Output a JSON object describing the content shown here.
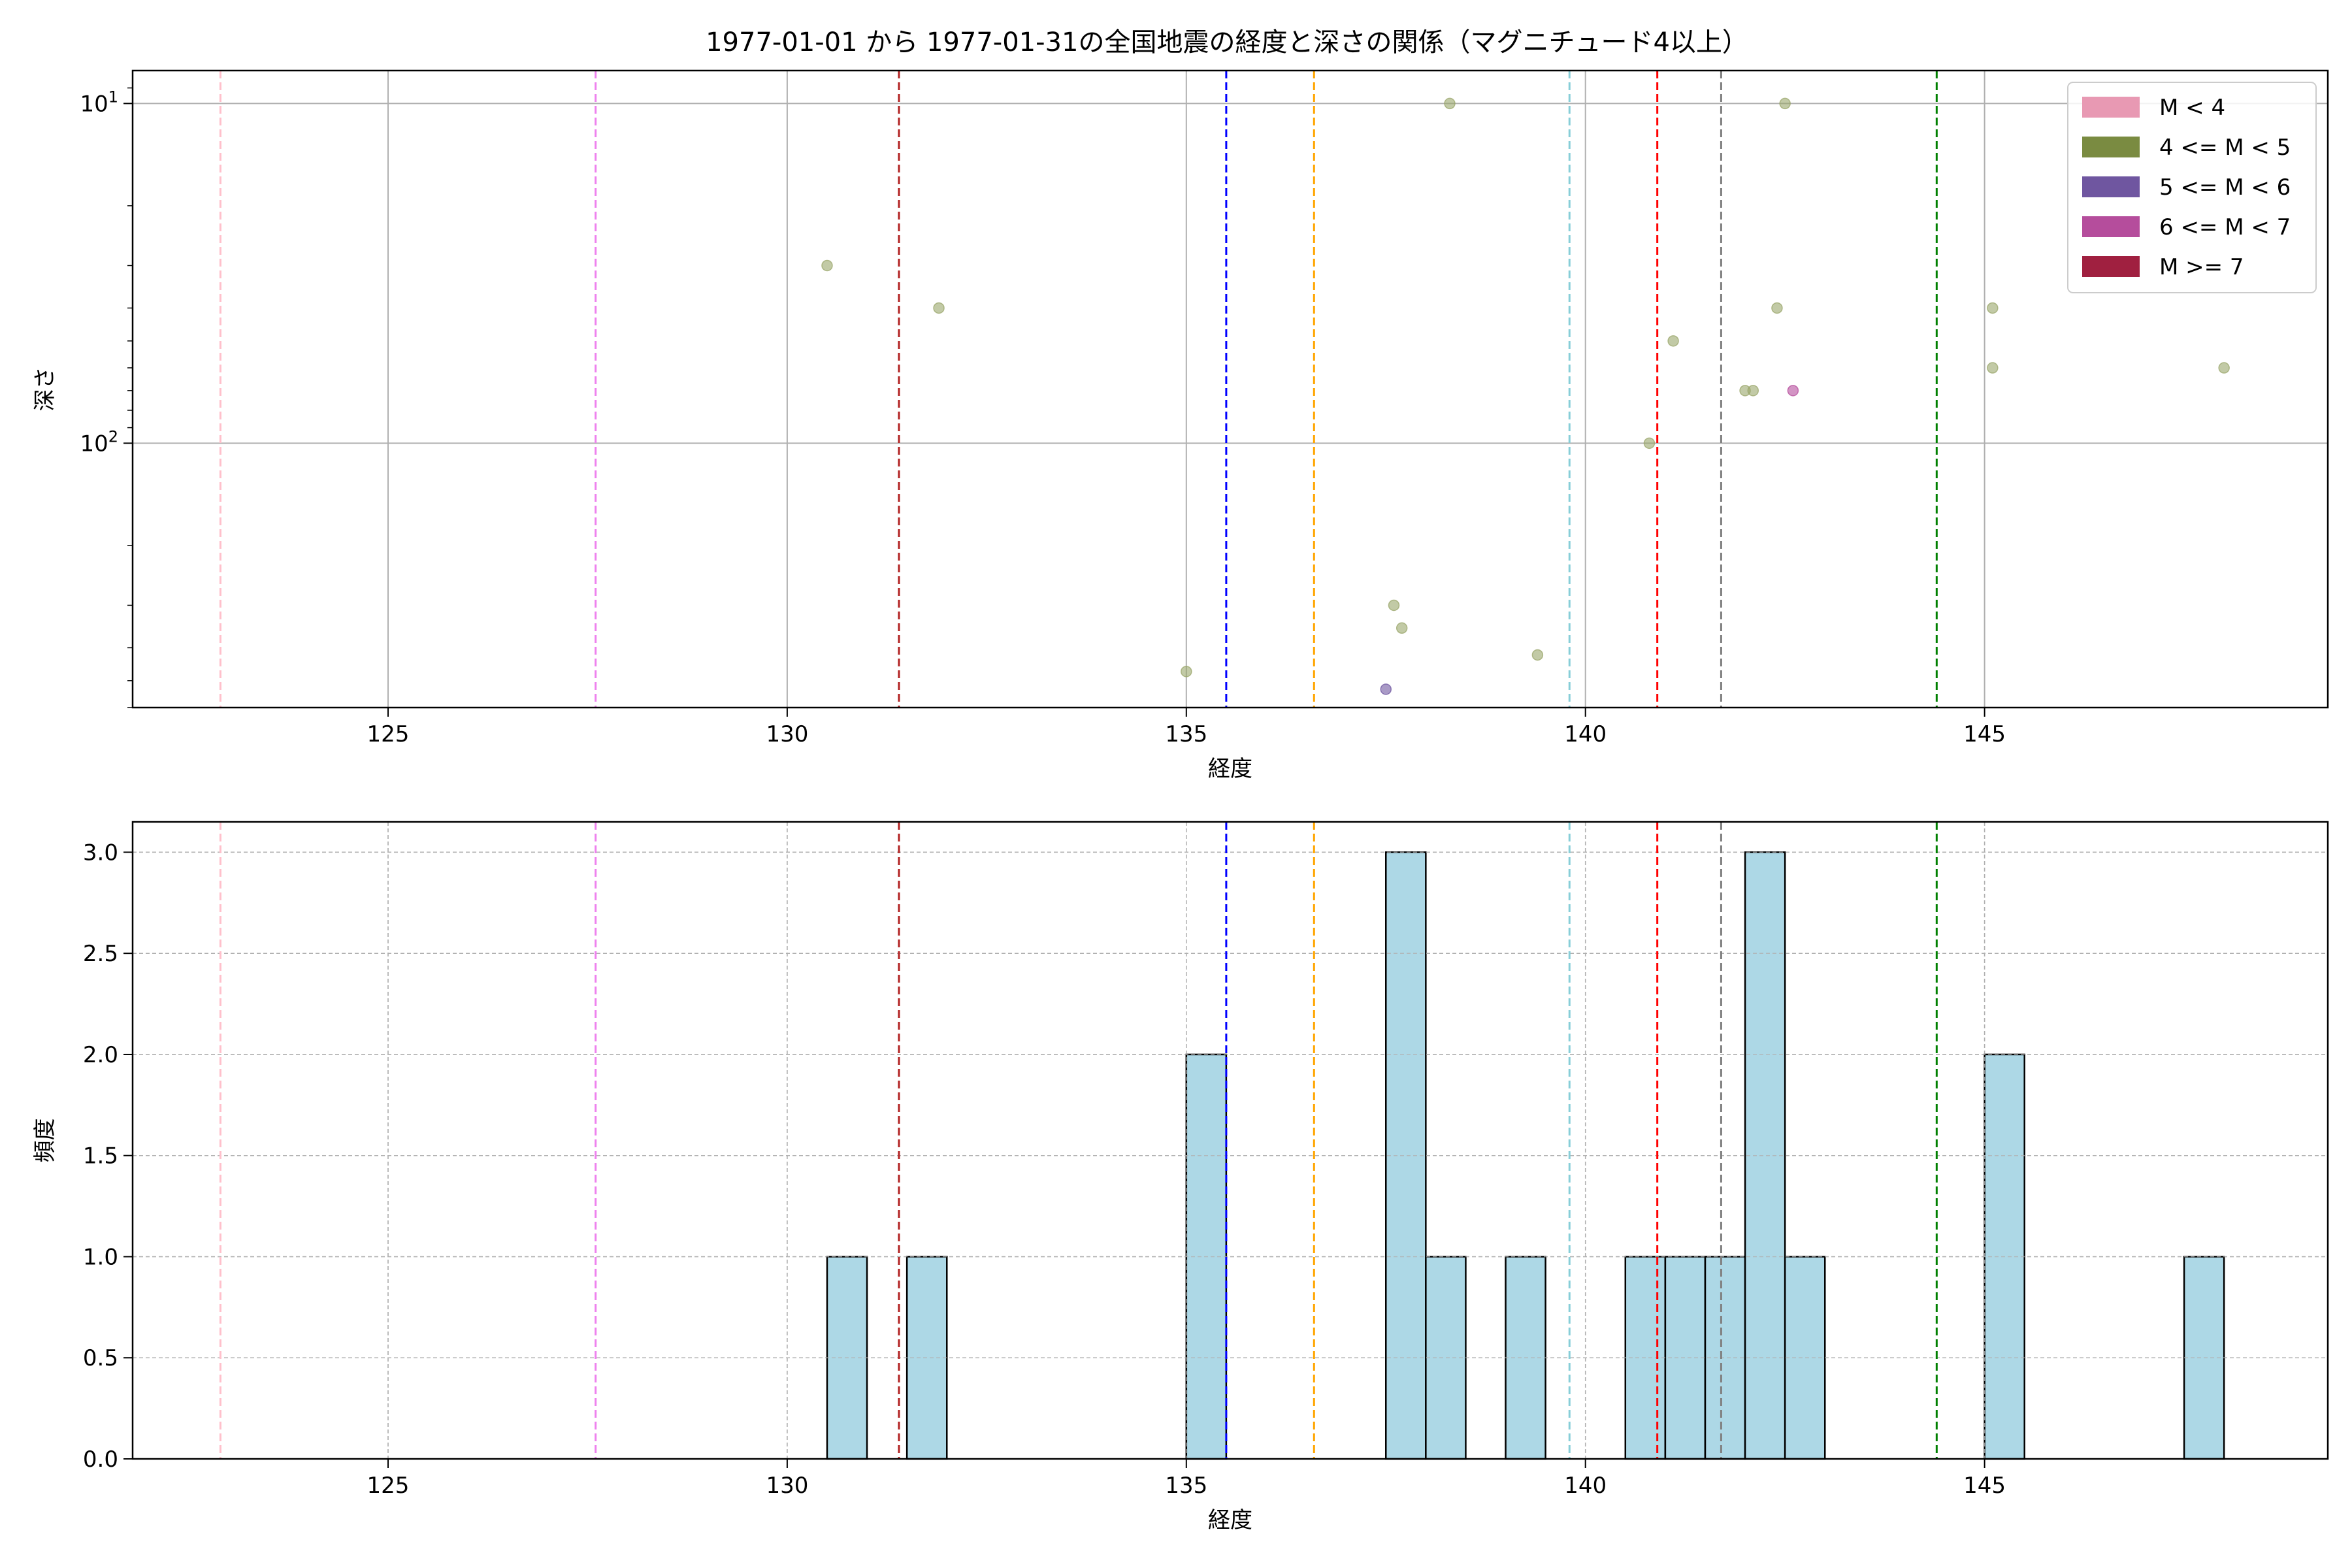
{
  "figure_title": "1977-01-01 から 1977-01-31の全国地震の経度と深さの関係（マグニチュード4以上）",
  "reference_lines": [
    {
      "x": 122.9,
      "color": "#ffc0cb"
    },
    {
      "x": 127.6,
      "color": "#ee82ee"
    },
    {
      "x": 131.4,
      "color": "#b22222"
    },
    {
      "x": 135.5,
      "color": "#0000ff"
    },
    {
      "x": 136.6,
      "color": "#ffa500"
    },
    {
      "x": 139.8,
      "color": "#87ced8"
    },
    {
      "x": 140.9,
      "color": "#ff0000"
    },
    {
      "x": 141.7,
      "color": "#808080"
    },
    {
      "x": 144.4,
      "color": "#008000"
    }
  ],
  "chart_data": [
    {
      "type": "scatter",
      "title": "",
      "xlabel": "経度",
      "ylabel": "深さ",
      "xlim": [
        121.8,
        149.3
      ],
      "ylim": [
        600,
        8
      ],
      "yscale": "log",
      "inverted_y": true,
      "grid": true,
      "xticks": [
        125,
        130,
        135,
        140,
        145
      ],
      "yticks": [
        {
          "value": 10,
          "base": "10",
          "exp": "1"
        },
        {
          "value": 100,
          "base": "10",
          "exp": "2"
        }
      ],
      "legend": {
        "position": "top-right",
        "entries": [
          {
            "label": "M < 4",
            "color": "#e899b3"
          },
          {
            "label": "4 <= M < 5",
            "color": "#7a8b41"
          },
          {
            "label": "5 <= M < 6",
            "color": "#6f56a0"
          },
          {
            "label": "6 <= M < 7",
            "color": "#b54d9c"
          },
          {
            "label": "M >= 7",
            "color": "#a02040"
          }
        ]
      },
      "series": [
        {
          "name": "4 <= M < 5",
          "color": "#9aa66a",
          "points": [
            {
              "x": 130.5,
              "y": 30
            },
            {
              "x": 131.9,
              "y": 40
            },
            {
              "x": 135.0,
              "y": 470
            },
            {
              "x": 137.6,
              "y": 300
            },
            {
              "x": 137.7,
              "y": 350
            },
            {
              "x": 138.3,
              "y": 10
            },
            {
              "x": 139.4,
              "y": 420
            },
            {
              "x": 140.8,
              "y": 100
            },
            {
              "x": 141.1,
              "y": 50
            },
            {
              "x": 142.0,
              "y": 70
            },
            {
              "x": 142.1,
              "y": 70
            },
            {
              "x": 142.4,
              "y": 40
            },
            {
              "x": 142.5,
              "y": 10
            },
            {
              "x": 145.1,
              "y": 40
            },
            {
              "x": 145.1,
              "y": 60
            },
            {
              "x": 148.0,
              "y": 60
            }
          ]
        },
        {
          "name": "5 <= M < 6",
          "color": "#6f56a0",
          "points": [
            {
              "x": 137.5,
              "y": 530
            }
          ]
        },
        {
          "name": "6 <= M < 7",
          "color": "#b54d9c",
          "points": [
            {
              "x": 142.6,
              "y": 70
            }
          ]
        }
      ]
    },
    {
      "type": "bar",
      "title": "",
      "xlabel": "経度",
      "ylabel": "頻度",
      "xlim": [
        121.8,
        149.3
      ],
      "ylim": [
        0,
        3.15
      ],
      "grid": true,
      "xticks": [
        125,
        130,
        135,
        140,
        145
      ],
      "yticks": [
        "0.0",
        "0.5",
        "1.0",
        "1.5",
        "2.0",
        "2.5",
        "3.0"
      ],
      "bar_color": "#add8e6",
      "bin_width": 0.5,
      "bins": [
        {
          "x0": 130.5,
          "x1": 131.0,
          "count": 1
        },
        {
          "x0": 131.5,
          "x1": 132.0,
          "count": 1
        },
        {
          "x0": 135.0,
          "x1": 135.5,
          "count": 2
        },
        {
          "x0": 137.5,
          "x1": 138.0,
          "count": 3
        },
        {
          "x0": 138.0,
          "x1": 138.5,
          "count": 1
        },
        {
          "x0": 139.0,
          "x1": 139.5,
          "count": 1
        },
        {
          "x0": 140.5,
          "x1": 141.0,
          "count": 1
        },
        {
          "x0": 141.0,
          "x1": 141.5,
          "count": 1
        },
        {
          "x0": 141.5,
          "x1": 142.0,
          "count": 1
        },
        {
          "x0": 142.0,
          "x1": 142.5,
          "count": 3
        },
        {
          "x0": 142.5,
          "x1": 143.0,
          "count": 1
        },
        {
          "x0": 145.0,
          "x1": 145.5,
          "count": 2
        },
        {
          "x0": 147.5,
          "x1": 148.0,
          "count": 1
        }
      ]
    }
  ]
}
